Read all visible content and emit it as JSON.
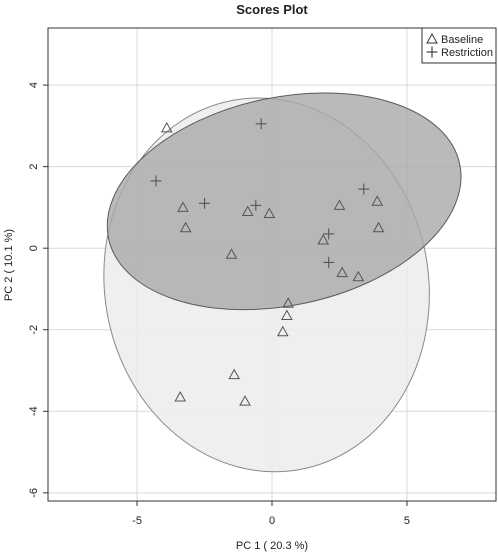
{
  "chart_data": {
    "type": "scatter",
    "title": "Scores Plot",
    "xlabel": "PC 1 ( 20.3 %)",
    "ylabel": "PC 2 ( 10.1 %)",
    "xlim": [
      -8.3,
      8.3
    ],
    "ylim": [
      -6.2,
      5.4
    ],
    "xticks": [
      -5,
      0,
      5
    ],
    "yticks": [
      -6,
      -4,
      -2,
      0,
      2,
      4
    ],
    "grid": true,
    "legend_position": "top-right",
    "series": [
      {
        "name": "Baseline",
        "marker": "triangle-open",
        "color": "#555555",
        "ellipse": {
          "cx": -0.2,
          "cy": -0.9,
          "rx": 6.0,
          "ry": 4.6,
          "angle_deg": -10,
          "fill": "#ececec",
          "stroke": "#8a8a8a"
        },
        "points": [
          {
            "x": -3.9,
            "y": 2.95
          },
          {
            "x": -3.3,
            "y": 1.0
          },
          {
            "x": -3.2,
            "y": 0.5
          },
          {
            "x": -1.5,
            "y": -0.15
          },
          {
            "x": -0.9,
            "y": 0.9
          },
          {
            "x": -0.1,
            "y": 0.85
          },
          {
            "x": 0.6,
            "y": -1.35
          },
          {
            "x": 0.55,
            "y": -1.65
          },
          {
            "x": 0.4,
            "y": -2.05
          },
          {
            "x": 1.9,
            "y": 0.2
          },
          {
            "x": 2.5,
            "y": 1.05
          },
          {
            "x": 2.6,
            "y": -0.6
          },
          {
            "x": 3.2,
            "y": -0.7
          },
          {
            "x": 3.9,
            "y": 1.15
          },
          {
            "x": 3.95,
            "y": 0.5
          },
          {
            "x": -1.4,
            "y": -3.1
          },
          {
            "x": -3.4,
            "y": -3.65
          },
          {
            "x": -1.0,
            "y": -3.75
          }
        ]
      },
      {
        "name": "Restriction",
        "marker": "plus",
        "color": "#555555",
        "ellipse": {
          "cx": 0.45,
          "cy": 1.15,
          "rx": 6.65,
          "ry": 2.55,
          "angle_deg": -12,
          "fill": "#a9a9a9",
          "stroke": "#5a5a5a"
        },
        "points": [
          {
            "x": -4.3,
            "y": 1.65
          },
          {
            "x": -2.5,
            "y": 1.1
          },
          {
            "x": -0.6,
            "y": 1.05
          },
          {
            "x": -0.4,
            "y": 3.05
          },
          {
            "x": 2.1,
            "y": 0.35
          },
          {
            "x": 2.1,
            "y": -0.35
          },
          {
            "x": 3.4,
            "y": 1.45
          }
        ]
      }
    ]
  }
}
